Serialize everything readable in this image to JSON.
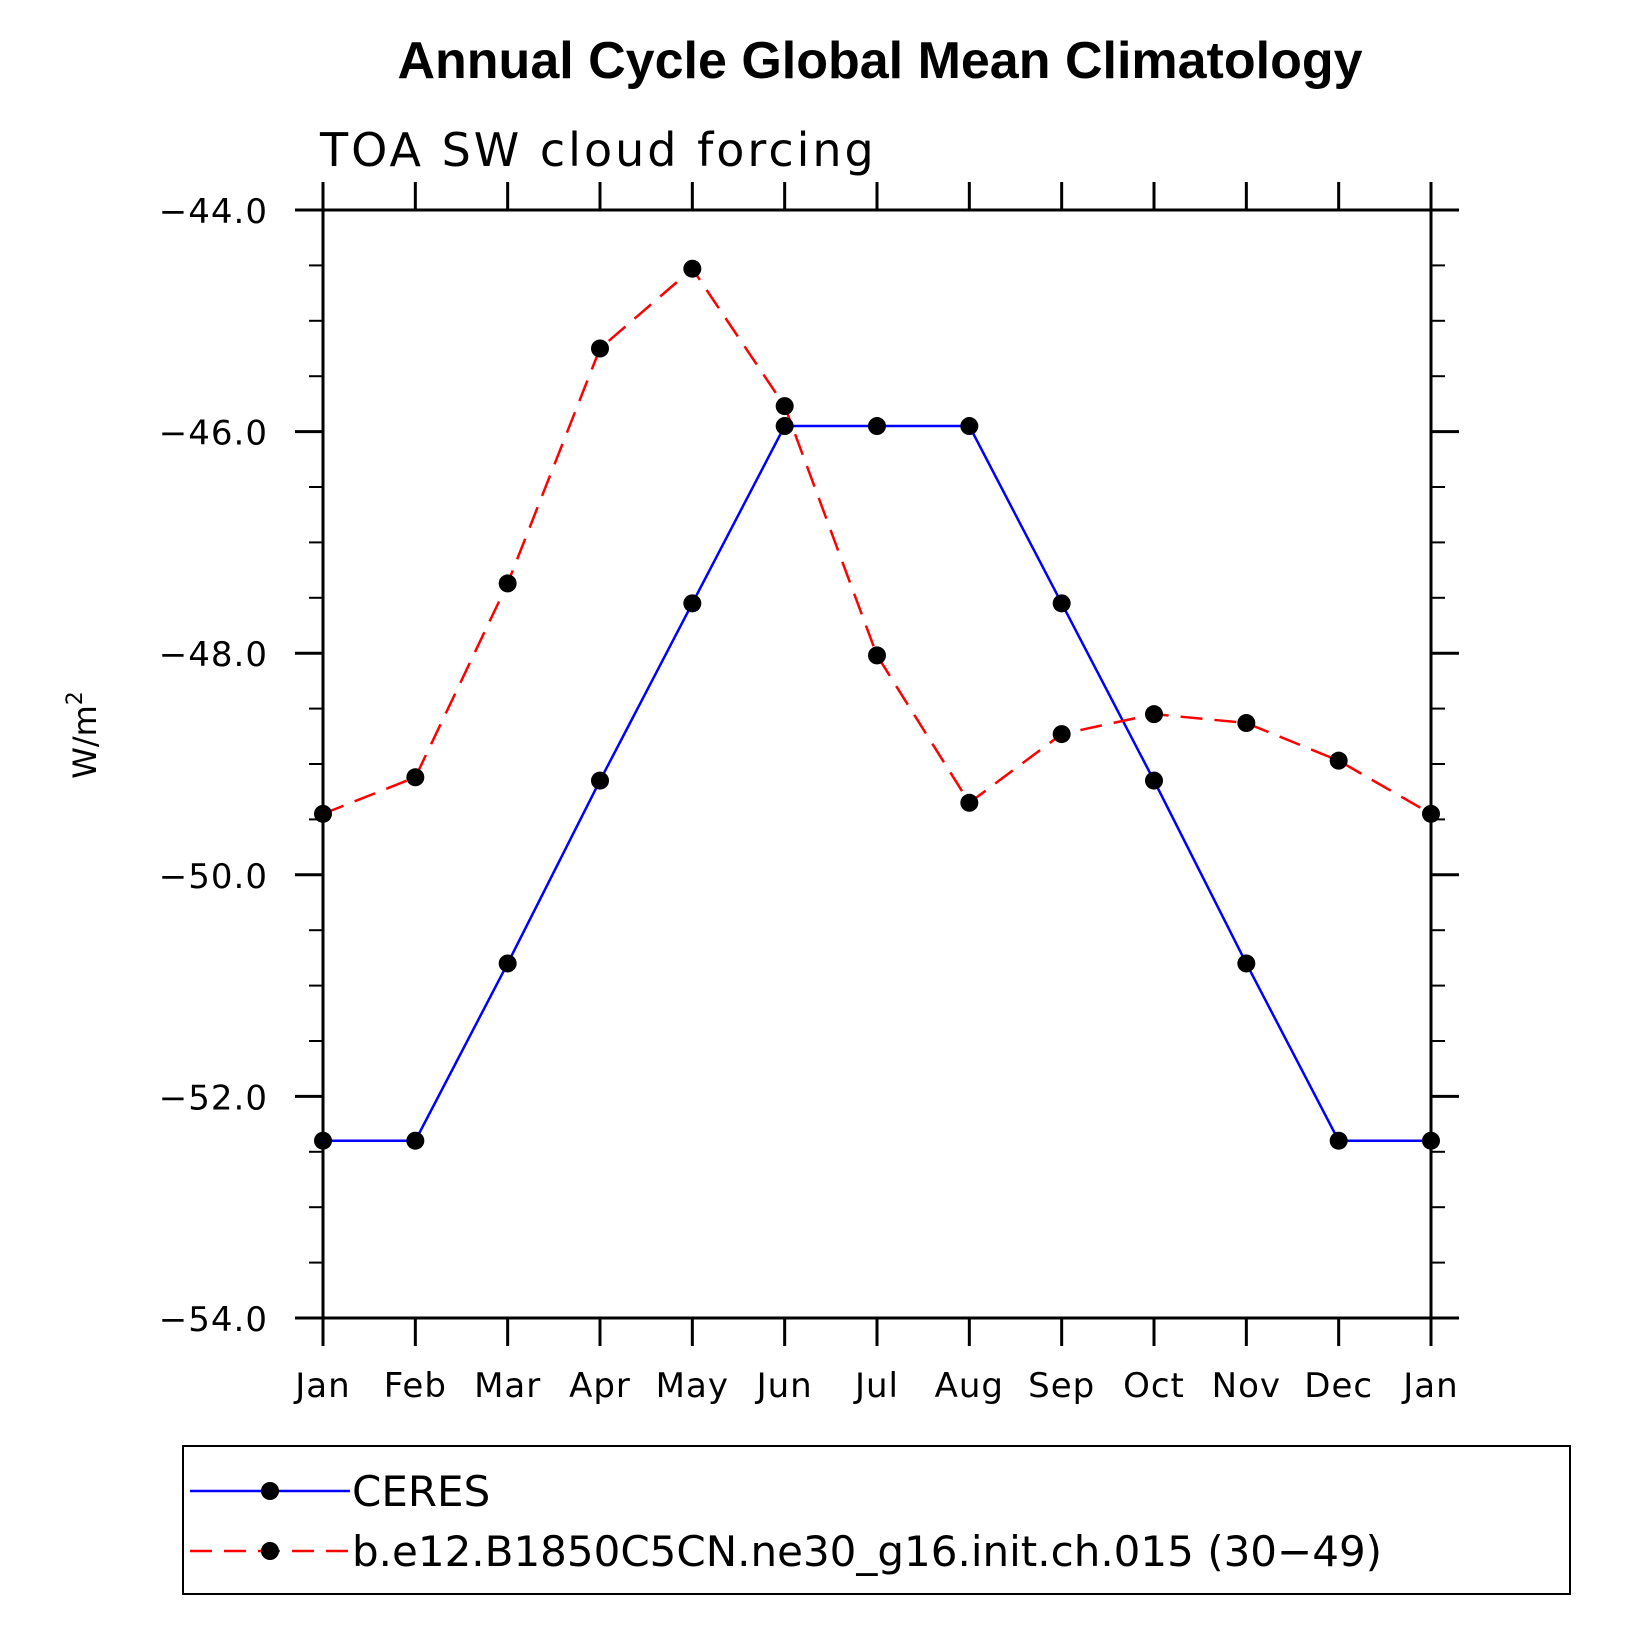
{
  "chart_data": {
    "type": "line",
    "title": "Annual Cycle Global Mean Climatology",
    "subtitle": "TOA SW cloud forcing",
    "ylabel_base": "W/m",
    "ylabel_sup": "2",
    "categories": [
      "Jan",
      "Feb",
      "Mar",
      "Apr",
      "May",
      "Jun",
      "Jul",
      "Aug",
      "Sep",
      "Oct",
      "Nov",
      "Dec",
      "Jan"
    ],
    "y_tick_labels": [
      "−44.0",
      "−46.0",
      "−48.0",
      "−50.0",
      "−52.0",
      "−54.0"
    ],
    "y_ticks": [
      -44,
      -46,
      -48,
      -50,
      -52,
      -54
    ],
    "ylim": [
      -54,
      -44
    ],
    "grid": false,
    "legend_position": "bottom",
    "series": [
      {
        "name": "CERES",
        "color": "#0000ff",
        "dash": "solid",
        "values": [
          -52.4,
          -52.4,
          -50.8,
          -49.15,
          -47.55,
          -45.95,
          -45.95,
          -45.95,
          -47.55,
          -49.15,
          -50.8,
          -52.4,
          -52.4
        ]
      },
      {
        "name": "b.e12.B1850C5CN.ne30_g16.init.ch.015 (30−49)",
        "color": "#ff0000",
        "dash": "dashed",
        "values": [
          -49.45,
          -49.12,
          -47.37,
          -45.25,
          -44.53,
          -45.77,
          -48.02,
          -49.35,
          -48.73,
          -48.55,
          -48.63,
          -48.97,
          -49.45
        ]
      }
    ]
  }
}
